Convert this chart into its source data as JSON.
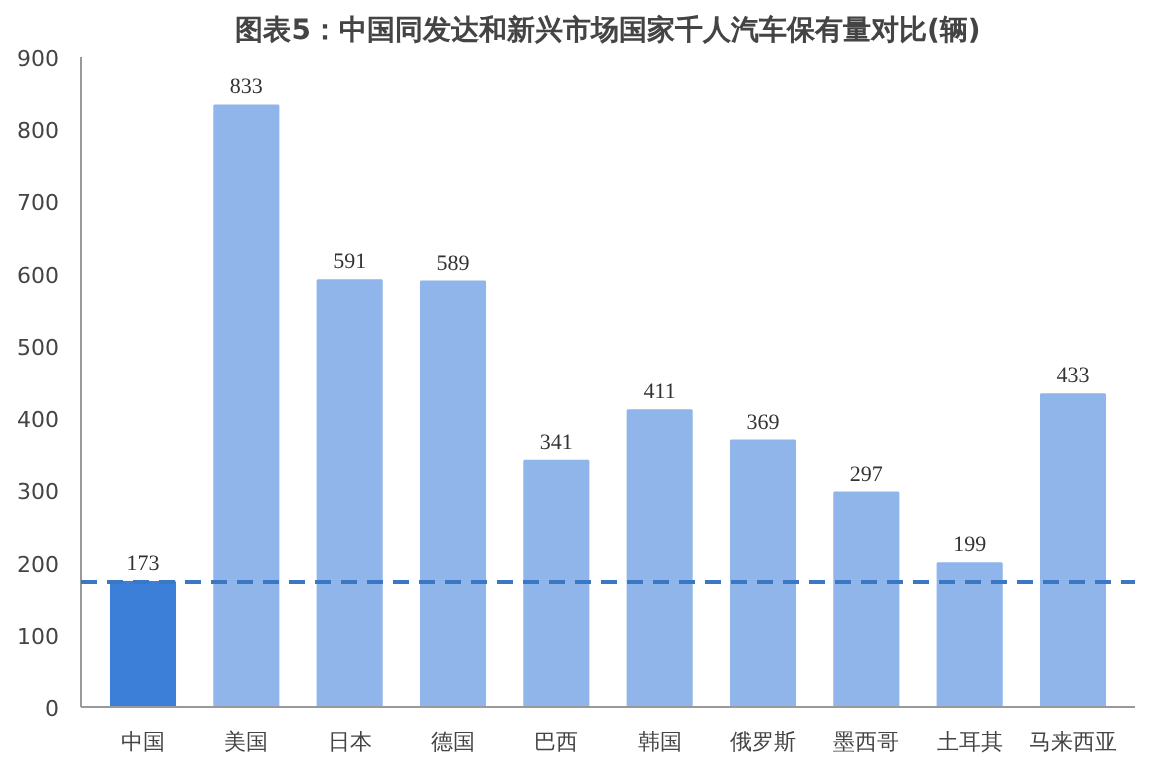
{
  "chart_data": {
    "type": "bar",
    "title": "图表5：中国同发达和新兴市场国家千人汽车保有量对比(辆)",
    "categories": [
      "中国",
      "美国",
      "日本",
      "德国",
      "巴西",
      "韩国",
      "俄罗斯",
      "墨西哥",
      "土耳其",
      "马来西亚"
    ],
    "values": [
      173,
      833,
      591,
      589,
      341,
      411,
      369,
      297,
      199,
      433
    ],
    "colors": [
      "#3b7fd8",
      "#8fb5ea",
      "#8fb5ea",
      "#8fb5ea",
      "#8fb5ea",
      "#8fb5ea",
      "#8fb5ea",
      "#8fb5ea",
      "#8fb5ea",
      "#8fb5ea"
    ],
    "ylim": [
      0,
      900
    ],
    "yticks": [
      0,
      100,
      200,
      300,
      400,
      500,
      600,
      700,
      800,
      900
    ],
    "data_labels": true,
    "ref_lines": [
      {
        "axis": "y",
        "value": 173,
        "color": "#3a78c3",
        "line_style": "dashed"
      }
    ]
  }
}
